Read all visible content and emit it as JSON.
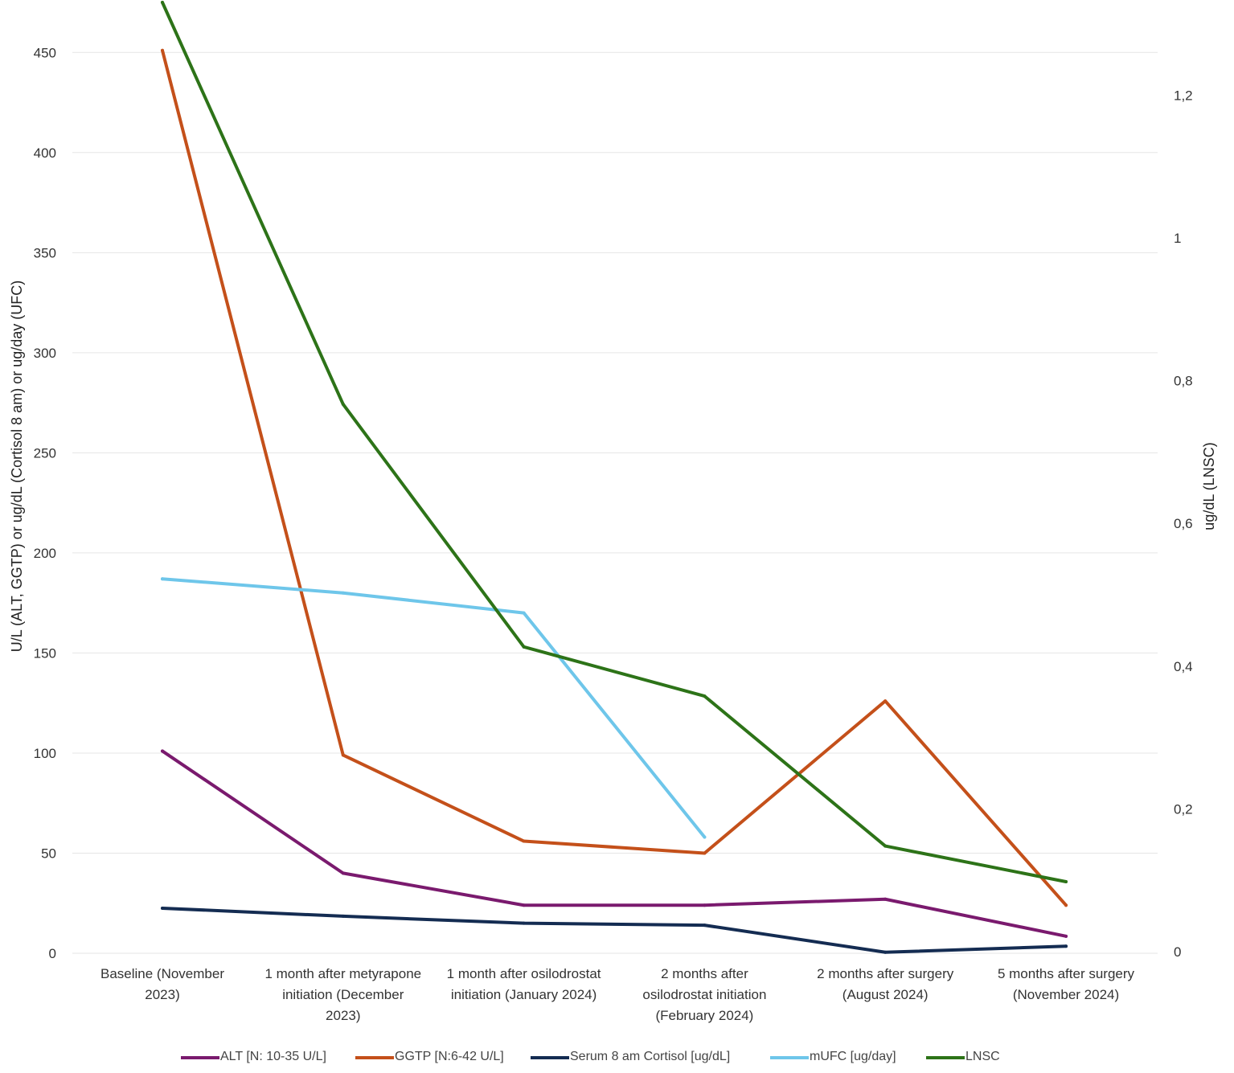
{
  "chart_data": {
    "type": "line",
    "categories": [
      [
        "Baseline (November",
        "2023)"
      ],
      [
        "1 month after metyrapone",
        "initiation (December",
        "2023)"
      ],
      [
        "1 month after osilodrostat",
        "initiation (January 2024)"
      ],
      [
        "2 months after",
        "osilodrostat initiation",
        "(February 2024)"
      ],
      [
        "2 months after surgery",
        "(August 2024)"
      ],
      [
        "5 months after surgery",
        "(November 2024)"
      ]
    ],
    "ylabel": "U/L (ALT, GGTP) or ug/dL (Cortisol 8 am) or ug/day (UFC)",
    "y2label": "ug/dL (LNSC)",
    "ylim": [
      0,
      475
    ],
    "y2lim": [
      0,
      1.33
    ],
    "yticks": [
      "0",
      "50",
      "100",
      "150",
      "200",
      "250",
      "300",
      "350",
      "400",
      "450"
    ],
    "y2ticks": [
      "0",
      "0,2",
      "0,4",
      "0,6",
      "0,8",
      "1",
      "1,2"
    ],
    "grid": true,
    "legend_position": "bottom",
    "series": [
      {
        "name": "ALT [N: 10-35 U/L]",
        "color": "#7a1a6e",
        "axis": "left",
        "values": [
          101,
          40,
          24,
          24,
          27,
          8.5
        ]
      },
      {
        "name": "GGTP [N:6-42 U/L]",
        "color": "#c4501a",
        "axis": "left",
        "values": [
          451,
          99,
          56,
          50,
          126,
          24
        ]
      },
      {
        "name": "Serum 8 am Cortisol [ug/dL]",
        "color": "#142c52",
        "axis": "left",
        "values": [
          22.5,
          18.5,
          15,
          14,
          0.5,
          3.5
        ]
      },
      {
        "name": "mUFC [ug/day]",
        "color": "#6ec6ea",
        "axis": "left",
        "values": [
          187,
          180,
          170,
          58,
          null,
          null
        ]
      },
      {
        "name": "LNSC",
        "color": "#2d7318",
        "axis": "right",
        "values": [
          1.33,
          0.767,
          0.427,
          0.358,
          0.148,
          0.098
        ]
      }
    ]
  }
}
